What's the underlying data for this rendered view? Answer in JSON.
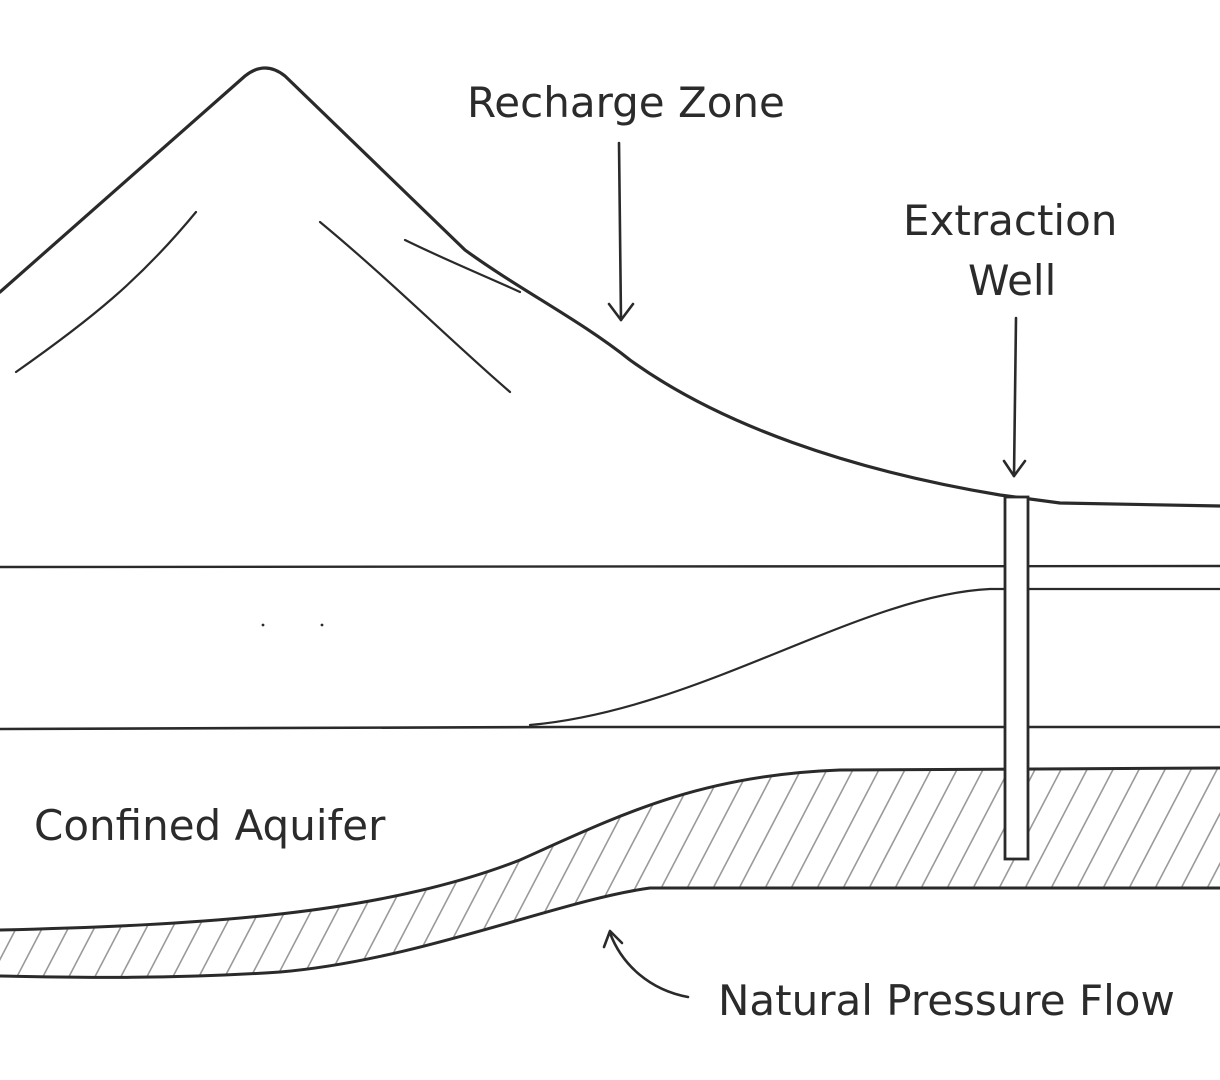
{
  "labels": {
    "recharge_zone": "Recharge Zone",
    "extraction_well_line1": "Extraction",
    "extraction_well_line2": "Well",
    "confined_aquifer": "Confined Aquifer",
    "natural_pressure_flow": "Natural Pressure Flow"
  },
  "colors": {
    "ink": "#2a2a2a",
    "hatch": "#9a9a9a",
    "background": "#ffffff"
  }
}
